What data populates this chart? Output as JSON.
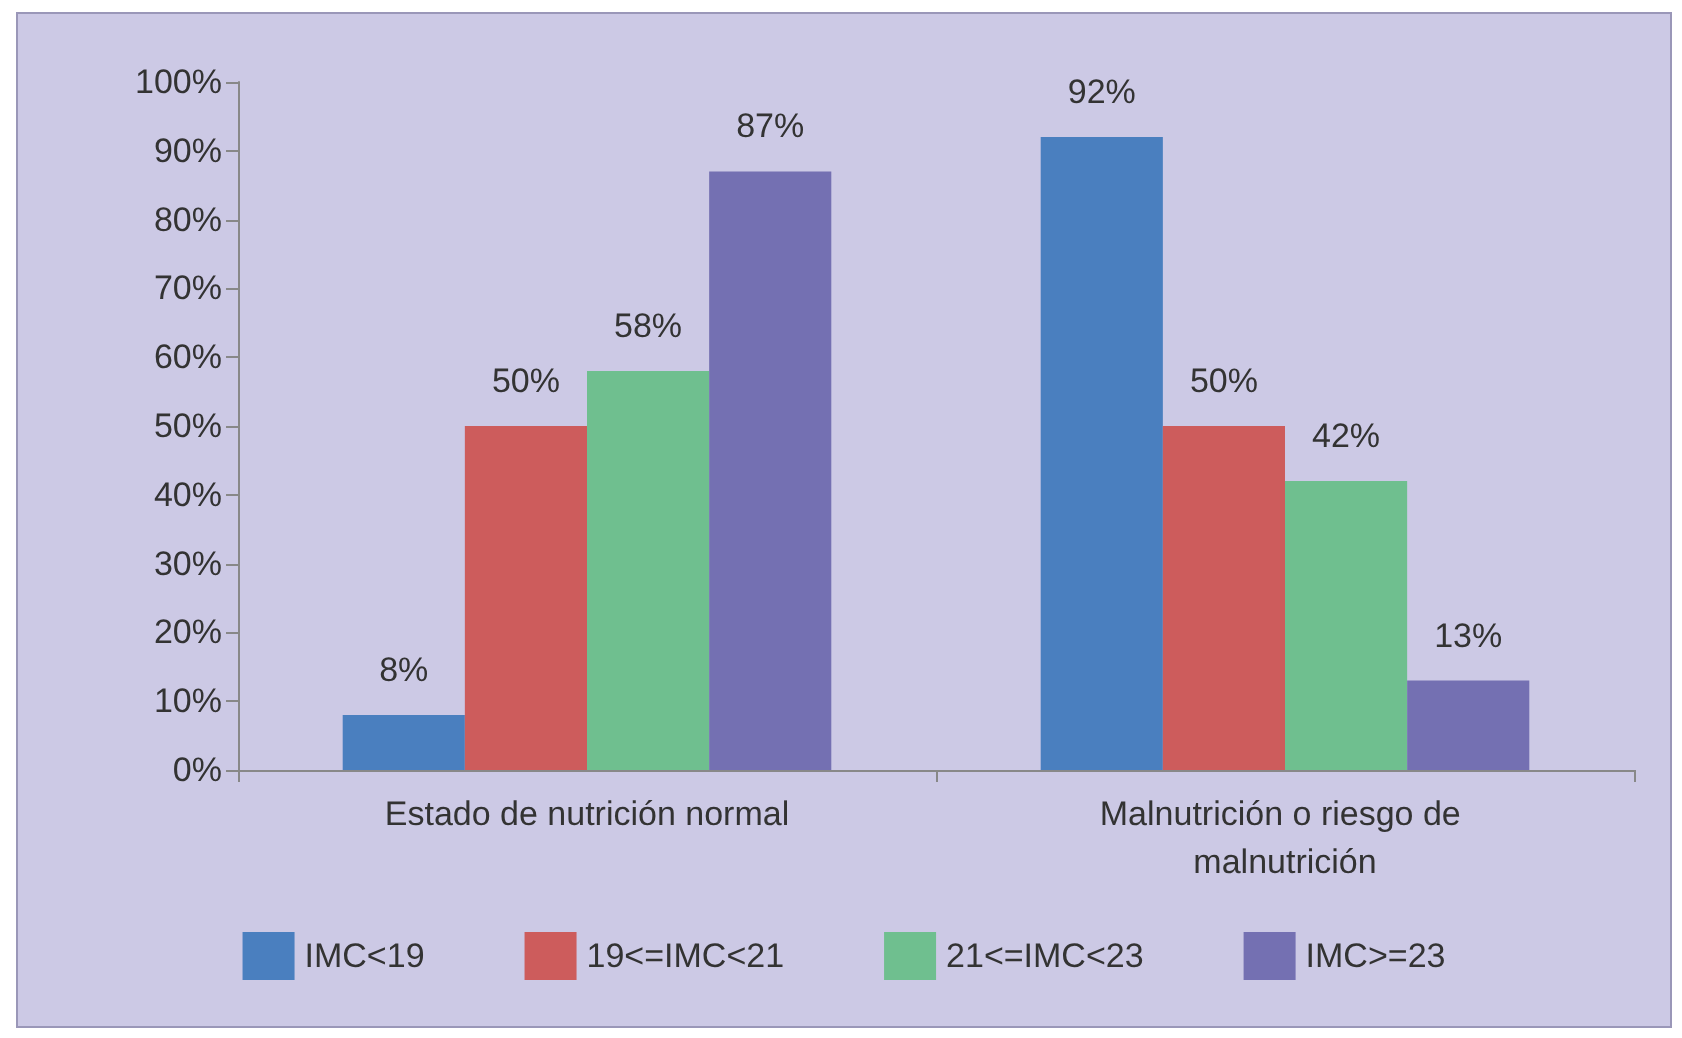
{
  "chart_data": {
    "type": "bar",
    "categories": [
      "Estado de nutrición normal",
      "Malnutrición o riesgo de malnutrición"
    ],
    "series": [
      {
        "name": "IMC<19",
        "color": "#4a7fbf",
        "values": [
          8,
          92
        ],
        "value_labels": [
          "8%",
          "92%"
        ]
      },
      {
        "name": "19<=IMC<21",
        "color": "#cd5c5c",
        "values": [
          50,
          50
        ],
        "value_labels": [
          "50%",
          "50%"
        ]
      },
      {
        "name": "21<=IMC<23",
        "color": "#6fbf8f",
        "values": [
          58,
          42
        ],
        "value_labels": [
          "58%",
          "42%"
        ]
      },
      {
        "name": "IMC>=23",
        "color": "#7470b2",
        "values": [
          87,
          13
        ],
        "value_labels": [
          "87%",
          "13%"
        ]
      }
    ],
    "ylim": [
      0,
      100
    ],
    "yticks": [
      {
        "value": 0,
        "label": "0%"
      },
      {
        "value": 10,
        "label": "10%"
      },
      {
        "value": 20,
        "label": "20%"
      },
      {
        "value": 30,
        "label": "30%"
      },
      {
        "value": 40,
        "label": "40%"
      },
      {
        "value": 50,
        "label": "50%"
      },
      {
        "value": 60,
        "label": "60%"
      },
      {
        "value": 70,
        "label": "70%"
      },
      {
        "value": 80,
        "label": "80%"
      },
      {
        "value": 90,
        "label": "90%"
      },
      {
        "value": 100,
        "label": "100%"
      }
    ],
    "grid": false,
    "legend": "bottom"
  }
}
